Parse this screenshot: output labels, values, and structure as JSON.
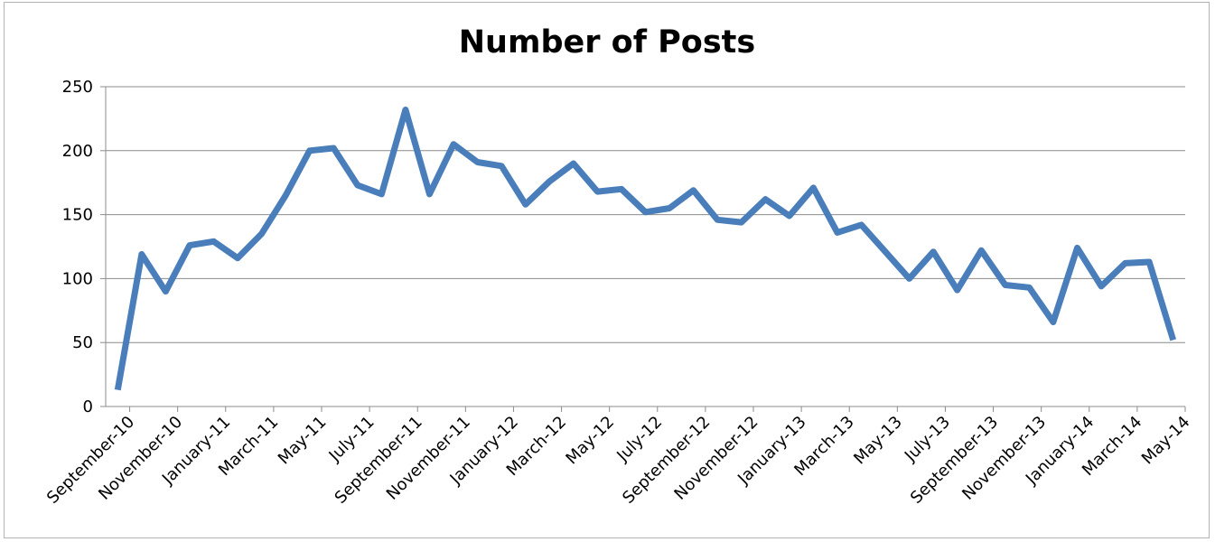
{
  "chart_data": {
    "type": "line",
    "title": "Number of Posts",
    "xlabel": "",
    "ylabel": "",
    "ylim": [
      0,
      250
    ],
    "yticks": [
      0,
      50,
      100,
      150,
      200,
      250
    ],
    "grid": true,
    "legend": "none",
    "color": "#4a7ebb",
    "x": [
      "2010-09",
      "2010-10",
      "2010-11",
      "2010-12",
      "2011-01",
      "2011-02",
      "2011-03",
      "2011-04",
      "2011-05",
      "2011-06",
      "2011-07",
      "2011-08",
      "2011-09",
      "2011-10",
      "2011-11",
      "2011-12",
      "2012-01",
      "2012-02",
      "2012-03",
      "2012-04",
      "2012-05",
      "2012-06",
      "2012-07",
      "2012-08",
      "2012-09",
      "2012-10",
      "2012-11",
      "2012-12",
      "2013-01",
      "2013-02",
      "2013-03",
      "2013-04",
      "2013-05",
      "2013-06",
      "2013-07",
      "2013-08",
      "2013-09",
      "2013-10",
      "2013-11",
      "2013-12",
      "2014-01",
      "2014-02",
      "2014-03",
      "2014-04",
      "2014-05"
    ],
    "series": [
      {
        "values": [
          13,
          119,
          90,
          126,
          129,
          116,
          135,
          165,
          200,
          202,
          173,
          166,
          232,
          166,
          205,
          191,
          188,
          158,
          176,
          190,
          168,
          170,
          152,
          155,
          169,
          146,
          144,
          162,
          149,
          171,
          136,
          142,
          121,
          100,
          121,
          91,
          122,
          95,
          93,
          66,
          124,
          94,
          112,
          113,
          52
        ]
      }
    ],
    "tick_labels": [
      "September-10",
      "November-10",
      "January-11",
      "March-11",
      "May-11",
      "July-11",
      "September-11",
      "November-11",
      "January-12",
      "March-12",
      "May-12",
      "July-12",
      "September-12",
      "November-12",
      "January-13",
      "March-13",
      "May-13",
      "July-13",
      "September-13",
      "November-13",
      "January-14",
      "March-14",
      "May-14"
    ]
  }
}
